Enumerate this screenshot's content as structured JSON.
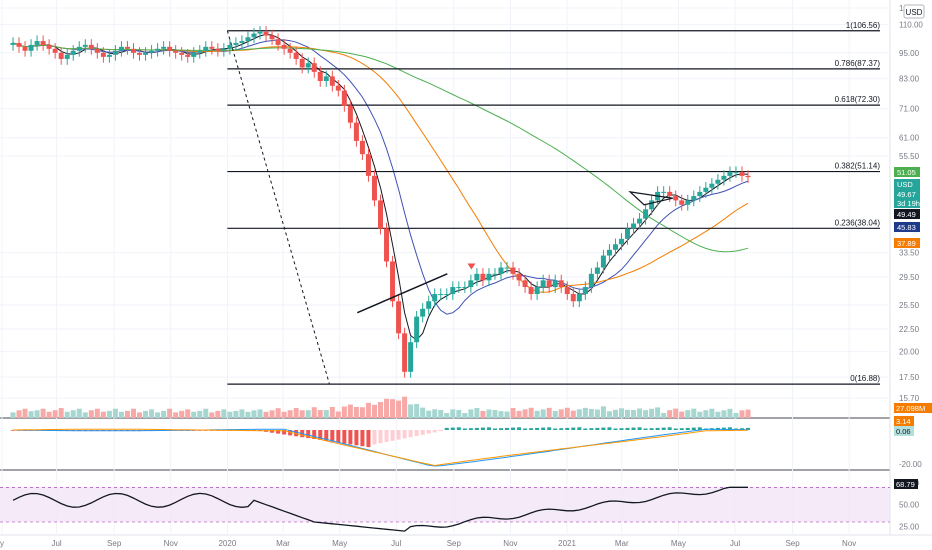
{
  "currency": "USD",
  "chart_data": {
    "type": "candlestick",
    "x_ticks": [
      "y",
      "Jul",
      "Sep",
      "Nov",
      "2020",
      "Mar",
      "May",
      "Jul",
      "Sep",
      "Nov",
      "2021",
      "Mar",
      "May",
      "Jul",
      "Sep",
      "Nov"
    ],
    "x_range": [
      "2019-05-01",
      "2021-12-15"
    ],
    "price_axis": {
      "ticks": [
        "120.00",
        "110.00",
        "95.00",
        "83.00",
        "71.00",
        "61.00",
        "55.50",
        "33.50",
        "29.50",
        "25.50",
        "22.50",
        "20.00",
        "17.50",
        "15.70"
      ],
      "ylim": [
        15.7,
        120.0
      ],
      "scale": "log"
    },
    "price_badges": [
      {
        "label": "51.05",
        "bg": "#4caf50"
      },
      {
        "label": "USD",
        "bg": "#26a69a"
      },
      {
        "label": "49.67",
        "bg": "#26a69a"
      },
      {
        "label": "3d 19h",
        "bg": "#26a69a"
      },
      {
        "label": "49.49",
        "bg": "#131722"
      },
      {
        "label": "45.83",
        "bg": "#1e3a8a"
      },
      {
        "label": "37.89",
        "bg": "#f57c00"
      }
    ],
    "fibonacci": [
      {
        "label": "1(106.56)",
        "value": 106.56
      },
      {
        "label": "0.786(87.37)",
        "value": 87.37
      },
      {
        "label": "0.618(72.30)",
        "value": 72.3
      },
      {
        "label": "0.382(51.14)",
        "value": 51.14
      },
      {
        "label": "0.236(38.04)",
        "value": 38.04
      },
      {
        "label": "0(16.88)",
        "value": 16.88
      }
    ],
    "series": [
      {
        "name": "price",
        "weekly_close": [
          100,
          98,
          96,
          99,
          101,
          99,
          97,
          95,
          92,
          94,
          96,
          98,
          99,
          97,
          95,
          93,
          94,
          96,
          98,
          97,
          95,
          94,
          95,
          96,
          97,
          98,
          96,
          95,
          94,
          93,
          95,
          96,
          98,
          97,
          96,
          97,
          99,
          100,
          101,
          103,
          105,
          106,
          104,
          102,
          99,
          97,
          95,
          92,
          88,
          90,
          86,
          82,
          84,
          80,
          78,
          72,
          66,
          60,
          56,
          50,
          44,
          38,
          32,
          26,
          22,
          18,
          21,
          24,
          25,
          26,
          27,
          27,
          27,
          28,
          28,
          28,
          29,
          30,
          29,
          30,
          30,
          31,
          31,
          30,
          29,
          28,
          27,
          28,
          29,
          28,
          29,
          28,
          27,
          26,
          27,
          28,
          30,
          31,
          33,
          34,
          35,
          36,
          38,
          39,
          40,
          42,
          44,
          46,
          46,
          45,
          44,
          43,
          44,
          45,
          46,
          47,
          48,
          49,
          50,
          51,
          51,
          50,
          49.67
        ]
      },
      {
        "name": "ma_short",
        "color": "#131722"
      },
      {
        "name": "ma_mid",
        "color": "#3f51b5"
      },
      {
        "name": "ma_long",
        "color": "#f57c00"
      },
      {
        "name": "ma_200",
        "color": "#4caf50"
      }
    ],
    "volume_badge": {
      "label": "27.098M",
      "bg": "#f57c00"
    },
    "macd_axis": [
      "-20.00"
    ],
    "macd_badges": [
      {
        "label": "3.14",
        "bg": "#f57c00"
      },
      {
        "label": "0.06",
        "bg": "#b2dfdb"
      }
    ],
    "rsi_axis": [
      "75.00",
      "50.00",
      "25.00"
    ],
    "rsi_badge": {
      "label": "68.79",
      "bg": "#131722"
    }
  }
}
